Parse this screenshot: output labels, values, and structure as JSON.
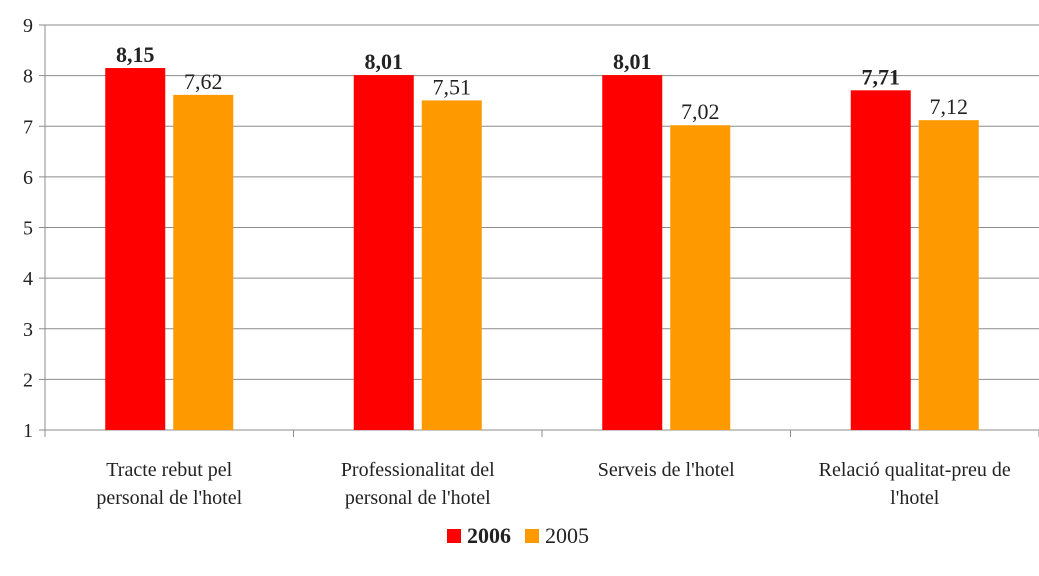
{
  "chart_data": {
    "type": "bar",
    "categories": [
      "Tracte rebut pel\npersonal de l'hotel",
      "Professionalitat del\npersonal de l'hotel",
      "Serveis de l'hotel",
      "Relació qualitat-preu de\nl'hotel"
    ],
    "series": [
      {
        "name": "2006",
        "color": "#ff0000",
        "values": [
          8.15,
          8.01,
          8.01,
          7.71
        ],
        "value_labels": [
          "8,15",
          "8,01",
          "8,01",
          "7,71"
        ],
        "bold": true
      },
      {
        "name": "2005",
        "color": "#ff9900",
        "values": [
          7.62,
          7.51,
          7.02,
          7.12
        ],
        "value_labels": [
          "7,62",
          "7,51",
          "7,02",
          "7,12"
        ],
        "bold": false
      }
    ],
    "ylim": [
      1,
      9
    ],
    "yticks": [
      1,
      2,
      3,
      4,
      5,
      6,
      7,
      8,
      9
    ],
    "grid": true,
    "legend": "bottom"
  }
}
